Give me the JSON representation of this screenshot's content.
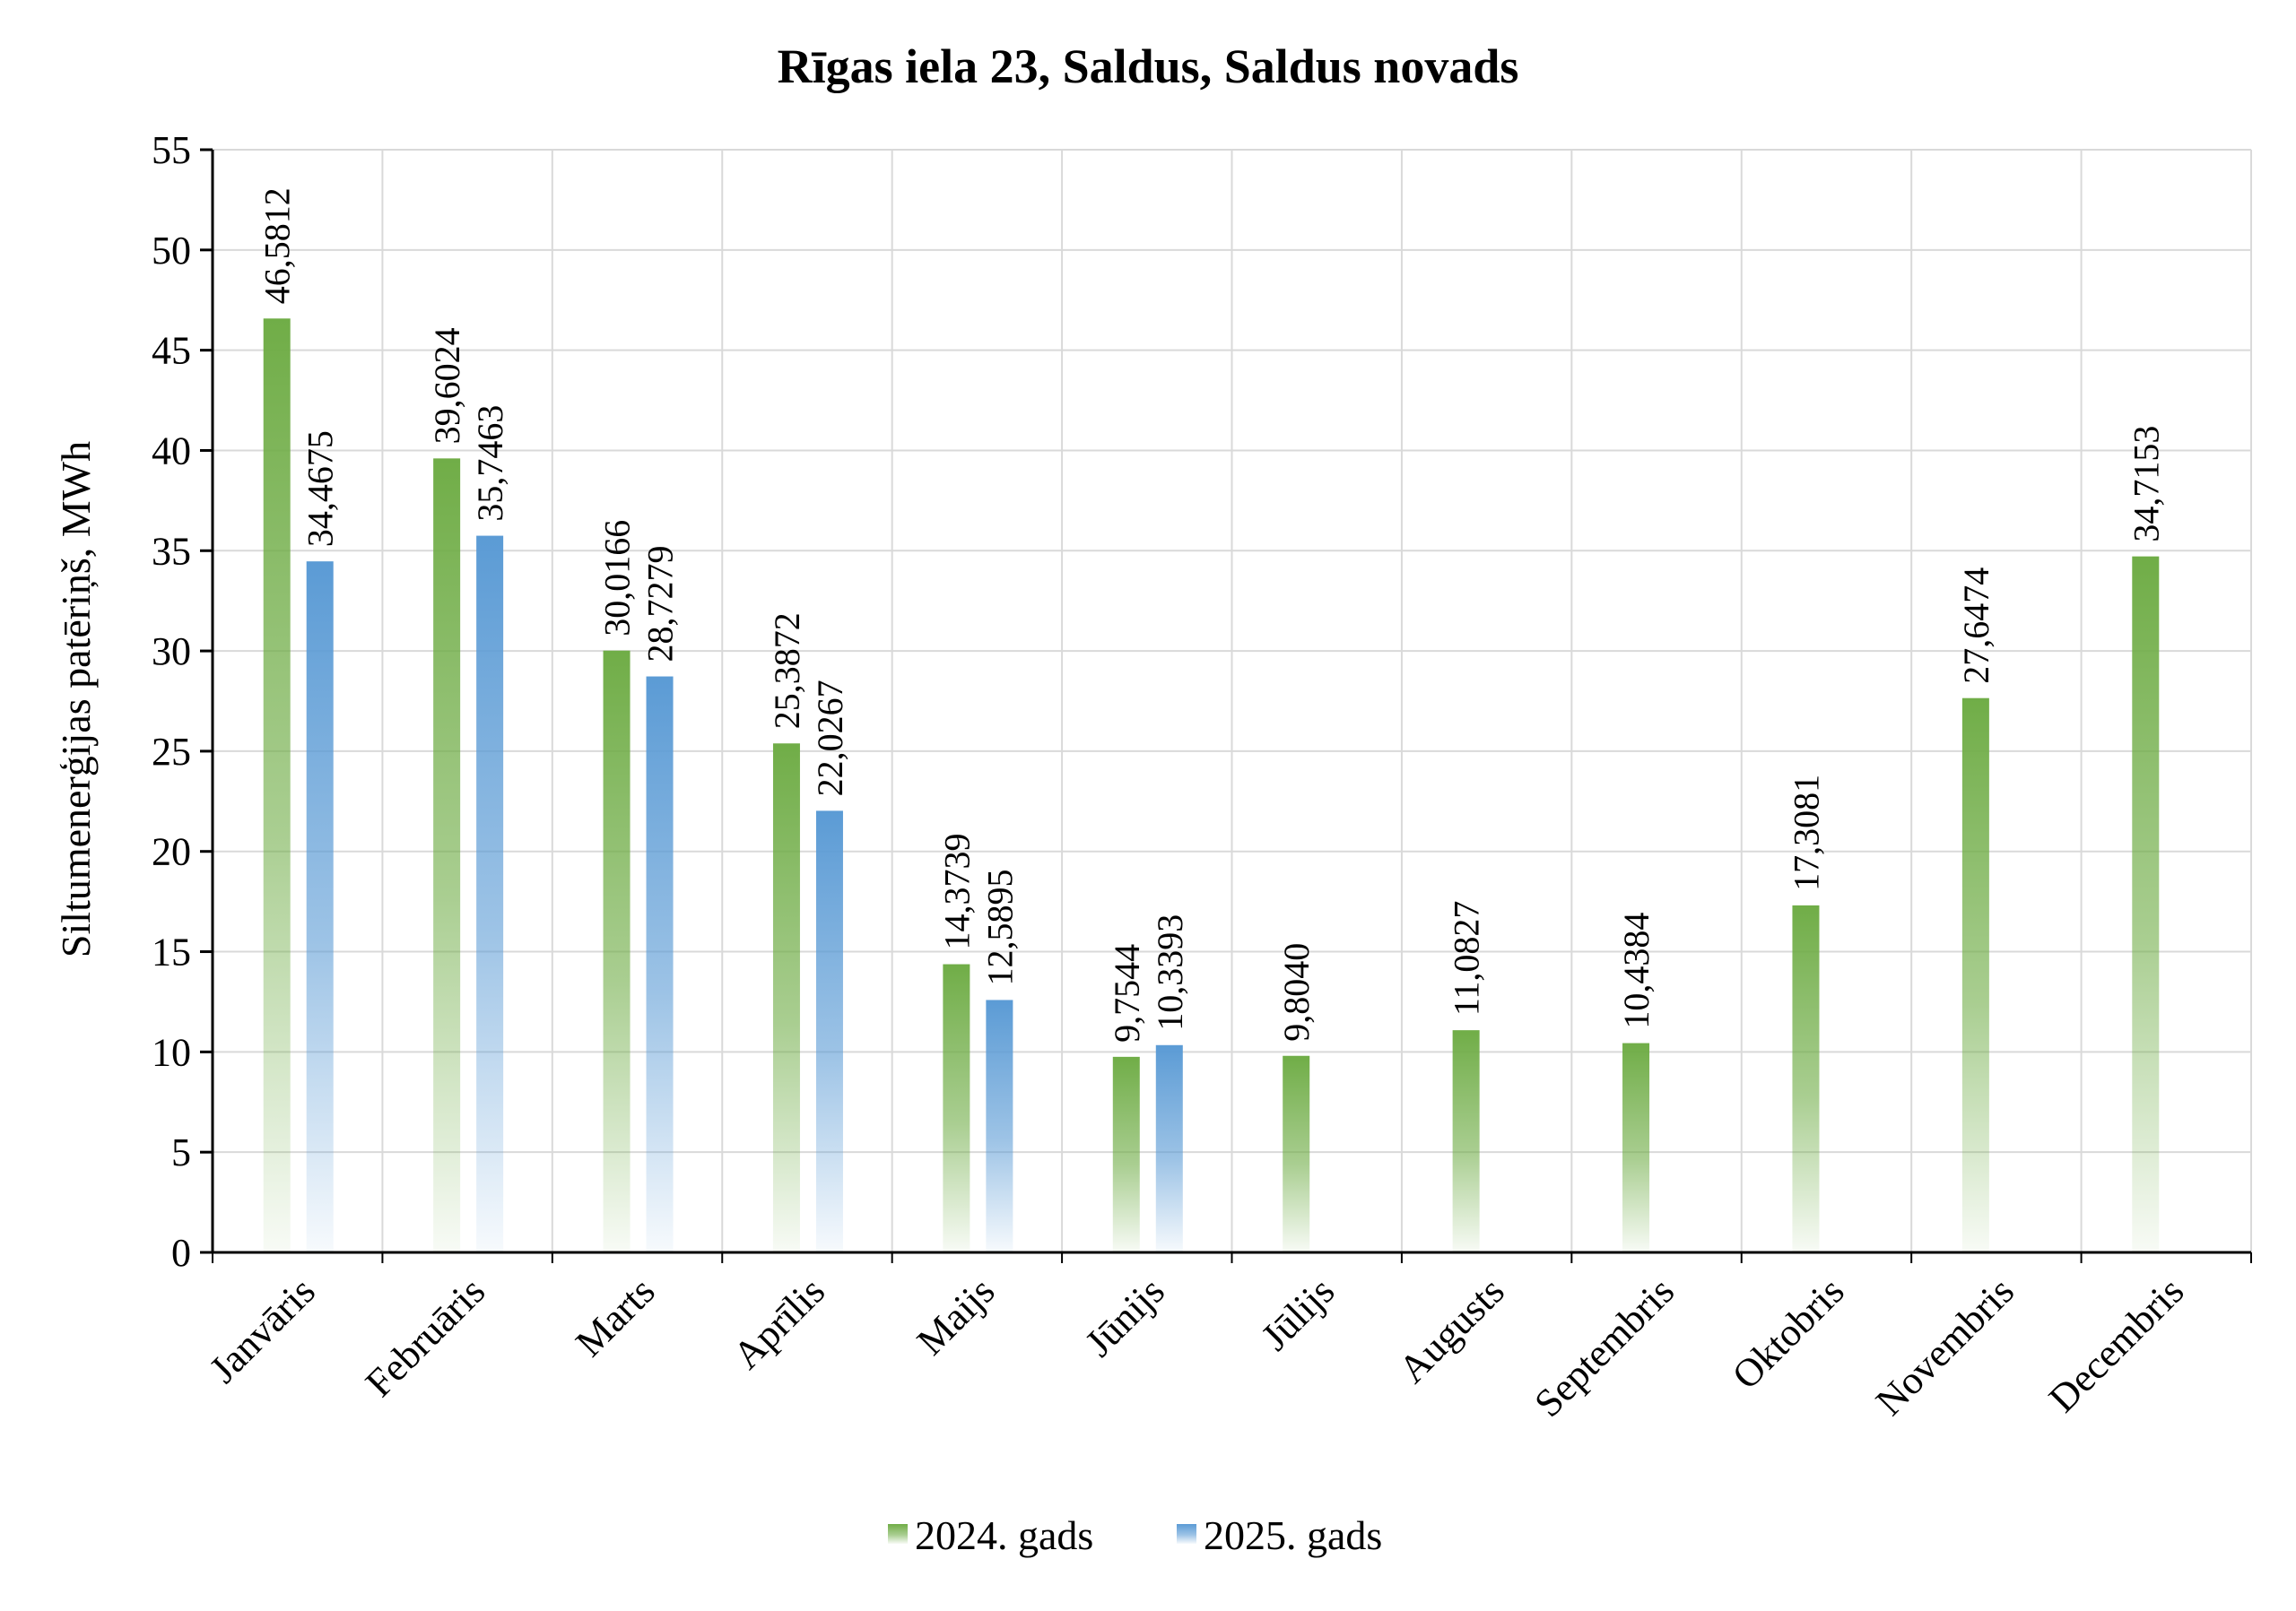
{
  "chart_data": {
    "type": "bar",
    "title": "Rīgas iela 23, Saldus, Saldus novads",
    "xlabel": "",
    "ylabel": "Siltumenerģijas patēriņš, MWh",
    "ylim": [
      0,
      55
    ],
    "yticks": [
      0,
      5,
      10,
      15,
      20,
      25,
      30,
      35,
      40,
      45,
      50,
      55
    ],
    "grid": true,
    "legend_position": "bottom",
    "categories": [
      "Janvāris",
      "Februāris",
      "Marts",
      "Aprīlis",
      "Maijs",
      "Jūnijs",
      "Jūlijs",
      "Augusts",
      "Septembris",
      "Oktobris",
      "Novembris",
      "Decembris"
    ],
    "series": [
      {
        "name": "2024. gads",
        "color": "#70ad47",
        "values": [
          46.5812,
          39.6024,
          30.0166,
          25.3872,
          14.3739,
          9.7544,
          9.804,
          11.0827,
          10.4384,
          17.3081,
          27.6474,
          34.7153
        ],
        "labels": [
          "46,5812",
          "39,6024",
          "30,0166",
          "25,3872",
          "14,3739",
          "9,7544",
          "9,8040",
          "11,0827",
          "10,4384",
          "17,3081",
          "27,6474",
          "34,7153"
        ]
      },
      {
        "name": "2025. gads",
        "color": "#5b9bd5",
        "values": [
          34.4675,
          35.7463,
          28.7279,
          22.0267,
          12.5895,
          10.3393,
          null,
          null,
          null,
          null,
          null,
          null
        ],
        "labels": [
          "34,4675",
          "35,7463",
          "28,7279",
          "22,0267",
          "12,5895",
          "10,3393",
          "",
          "",
          "",
          "",
          "",
          ""
        ]
      }
    ]
  }
}
